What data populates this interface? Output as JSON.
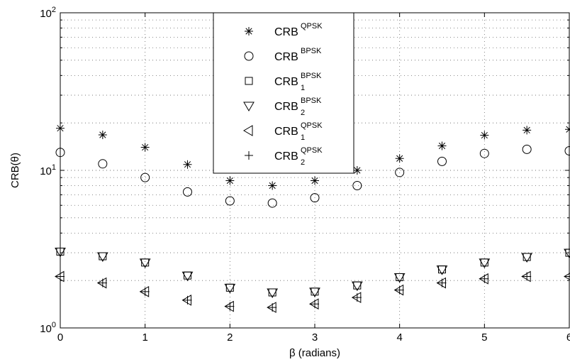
{
  "chart_data": {
    "type": "scatter",
    "xlabel": "β (radians)",
    "ylabel": "CRB(θ)",
    "xlim": [
      0,
      6
    ],
    "ylim": [
      1,
      100
    ],
    "yscale": "log",
    "x_ticks": [
      "0",
      "1",
      "2",
      "3",
      "4",
      "5",
      "6"
    ],
    "y_ticks": [
      {
        "base": "10",
        "exp": "0"
      },
      {
        "base": "10",
        "exp": "1"
      },
      {
        "base": "10",
        "exp": "2"
      }
    ],
    "grid": true,
    "legend_position": "top-center",
    "x": [
      0,
      0.5,
      1,
      1.5,
      2,
      2.5,
      3,
      3.5,
      4,
      4.5,
      5,
      5.5,
      6
    ],
    "series": [
      {
        "name": "CRB^QPSK",
        "base": "CRB",
        "sup": "QPSK",
        "sub": "",
        "marker": "asterisk",
        "values": [
          18.5,
          16.8,
          14.0,
          10.9,
          8.6,
          8.0,
          8.6,
          10.0,
          11.9,
          14.3,
          16.7,
          18.0,
          18.2
        ]
      },
      {
        "name": "CRB^BPSK",
        "base": "CRB",
        "sup": "BPSK",
        "sub": "",
        "marker": "circle",
        "values": [
          13.0,
          11.0,
          9.0,
          7.3,
          6.4,
          6.2,
          6.7,
          8.0,
          9.7,
          11.4,
          12.8,
          13.6,
          13.3
        ]
      },
      {
        "name": "CRB_1^BPSK",
        "base": "CRB",
        "sup": "BPSK",
        "sub": "1",
        "marker": "square",
        "values": [
          3.05,
          2.85,
          2.6,
          2.15,
          1.8,
          1.68,
          1.7,
          1.86,
          2.1,
          2.35,
          2.6,
          2.82,
          3.0
        ]
      },
      {
        "name": "CRB_2^BPSK",
        "base": "CRB",
        "sup": "BPSK",
        "sub": "2",
        "marker": "triangle-down",
        "values": [
          3.05,
          2.85,
          2.6,
          2.15,
          1.8,
          1.68,
          1.7,
          1.86,
          2.1,
          2.35,
          2.6,
          2.82,
          3.0
        ]
      },
      {
        "name": "CRB_1^QPSK",
        "base": "CRB",
        "sup": "QPSK",
        "sub": "1",
        "marker": "triangle-left",
        "values": [
          2.12,
          1.93,
          1.7,
          1.5,
          1.37,
          1.35,
          1.42,
          1.56,
          1.74,
          1.93,
          2.05,
          2.12,
          2.12
        ]
      },
      {
        "name": "CRB_2^QPSK",
        "base": "CRB",
        "sup": "QPSK",
        "sub": "2",
        "marker": "plus",
        "values": [
          2.12,
          1.93,
          1.7,
          1.5,
          1.37,
          1.35,
          1.42,
          1.56,
          1.74,
          1.93,
          2.05,
          2.12,
          2.12
        ]
      }
    ]
  }
}
